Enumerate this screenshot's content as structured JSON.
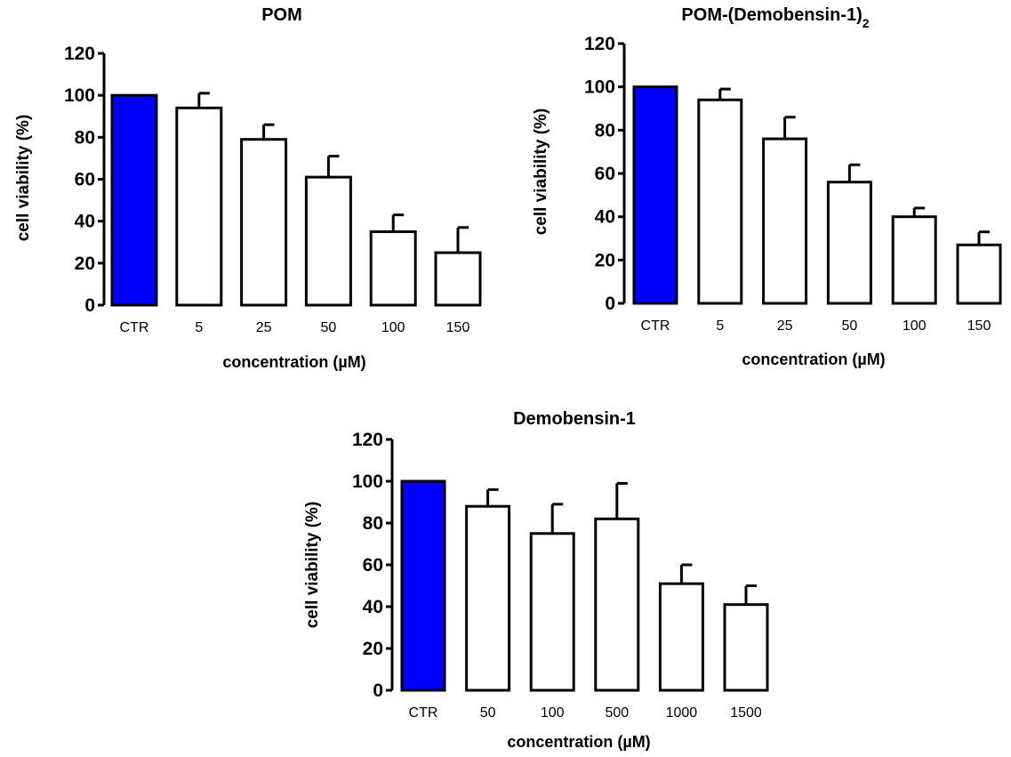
{
  "colors": {
    "control_bar": "#0000ff",
    "bar": "#ffffff",
    "stroke": "#000000"
  },
  "chart_data": [
    {
      "type": "bar",
      "title": "POM",
      "title_sub": "",
      "xlabel": "concentration (µM)",
      "ylabel": "cell viability (%)",
      "ylim": [
        0,
        120
      ],
      "yticks": [
        "0",
        "20",
        "40",
        "60",
        "80",
        "100",
        "120"
      ],
      "categories": [
        "CTR",
        "5",
        "25",
        "50",
        "100",
        "150"
      ],
      "values": [
        100,
        94,
        79,
        61,
        35,
        25
      ],
      "errors": [
        0,
        7,
        7,
        10,
        8,
        12
      ],
      "control_index": 0
    },
    {
      "type": "bar",
      "title": "POM-(Demobensin-1)",
      "title_sub": "2",
      "xlabel": "concentration (µM)",
      "ylabel": "cell viability (%)",
      "ylim": [
        0,
        120
      ],
      "yticks": [
        "0",
        "20",
        "40",
        "60",
        "80",
        "100",
        "120"
      ],
      "categories": [
        "CTR",
        "5",
        "25",
        "50",
        "100",
        "150"
      ],
      "values": [
        100,
        94,
        76,
        56,
        40,
        27
      ],
      "errors": [
        0,
        5,
        10,
        8,
        4,
        6
      ],
      "control_index": 0
    },
    {
      "type": "bar",
      "title": "Demobensin-1",
      "title_sub": "",
      "xlabel": "concentration (µM)",
      "ylabel": "cell viability (%)",
      "ylim": [
        0,
        120
      ],
      "yticks": [
        "0",
        "20",
        "40",
        "60",
        "80",
        "100",
        "120"
      ],
      "categories": [
        "CTR",
        "50",
        "100",
        "500",
        "1000",
        "1500"
      ],
      "values": [
        100,
        88,
        75,
        82,
        51,
        41
      ],
      "errors": [
        0,
        8,
        14,
        17,
        9,
        9
      ],
      "control_index": 0
    }
  ]
}
